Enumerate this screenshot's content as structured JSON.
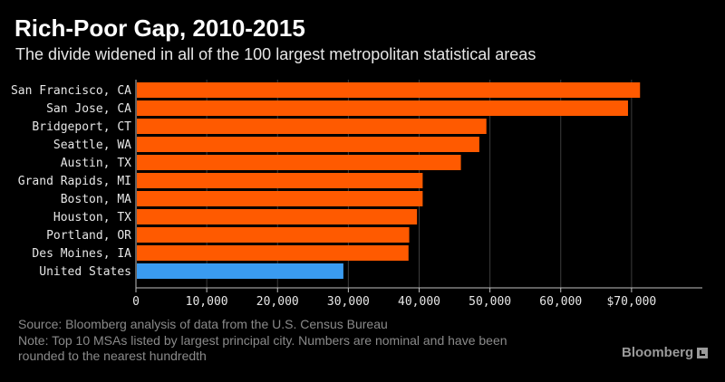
{
  "title": "Rich-Poor Gap, 2010-2015",
  "subtitle": "The divide widened in all of the 100 largest metropolitan statistical areas",
  "footer": {
    "source": "Source: Bloomberg analysis of data from the U.S. Census Bureau",
    "note_line1": "Note: Top 10 MSAs listed by largest principal city. Numbers are nominal and have been",
    "note_line2": "rounded to the nearest hundredth"
  },
  "brand": "Bloomberg",
  "colors": {
    "bar": "#ff5a00",
    "highlight": "#3a9bf0",
    "grid": "#3c3c3c",
    "axis": "#bfbfbf",
    "label": "#e6e6e6"
  },
  "chart_data": {
    "type": "bar",
    "orientation": "horizontal",
    "categories": [
      "San Francisco, CA",
      "San Jose, CA",
      "Bridgeport, CT",
      "Seattle, WA",
      "Austin, TX",
      "Grand Rapids, MI",
      "Boston, MA",
      "Houston, TX",
      "Portland, OR",
      "Des Moines, IA",
      "United States"
    ],
    "values": [
      71200,
      69500,
      49500,
      48500,
      45900,
      40500,
      40500,
      39700,
      38600,
      38500,
      29300
    ],
    "highlight": [
      "United States"
    ],
    "xlim": [
      0,
      80000
    ],
    "xticks": [
      0,
      10000,
      20000,
      30000,
      40000,
      50000,
      60000,
      70000
    ],
    "xtick_labels": [
      "0",
      "10,000",
      "20,000",
      "30,000",
      "40,000",
      "50,000",
      "60,000",
      "$70,000"
    ],
    "xlabel": "",
    "ylabel": "",
    "grid": true
  }
}
